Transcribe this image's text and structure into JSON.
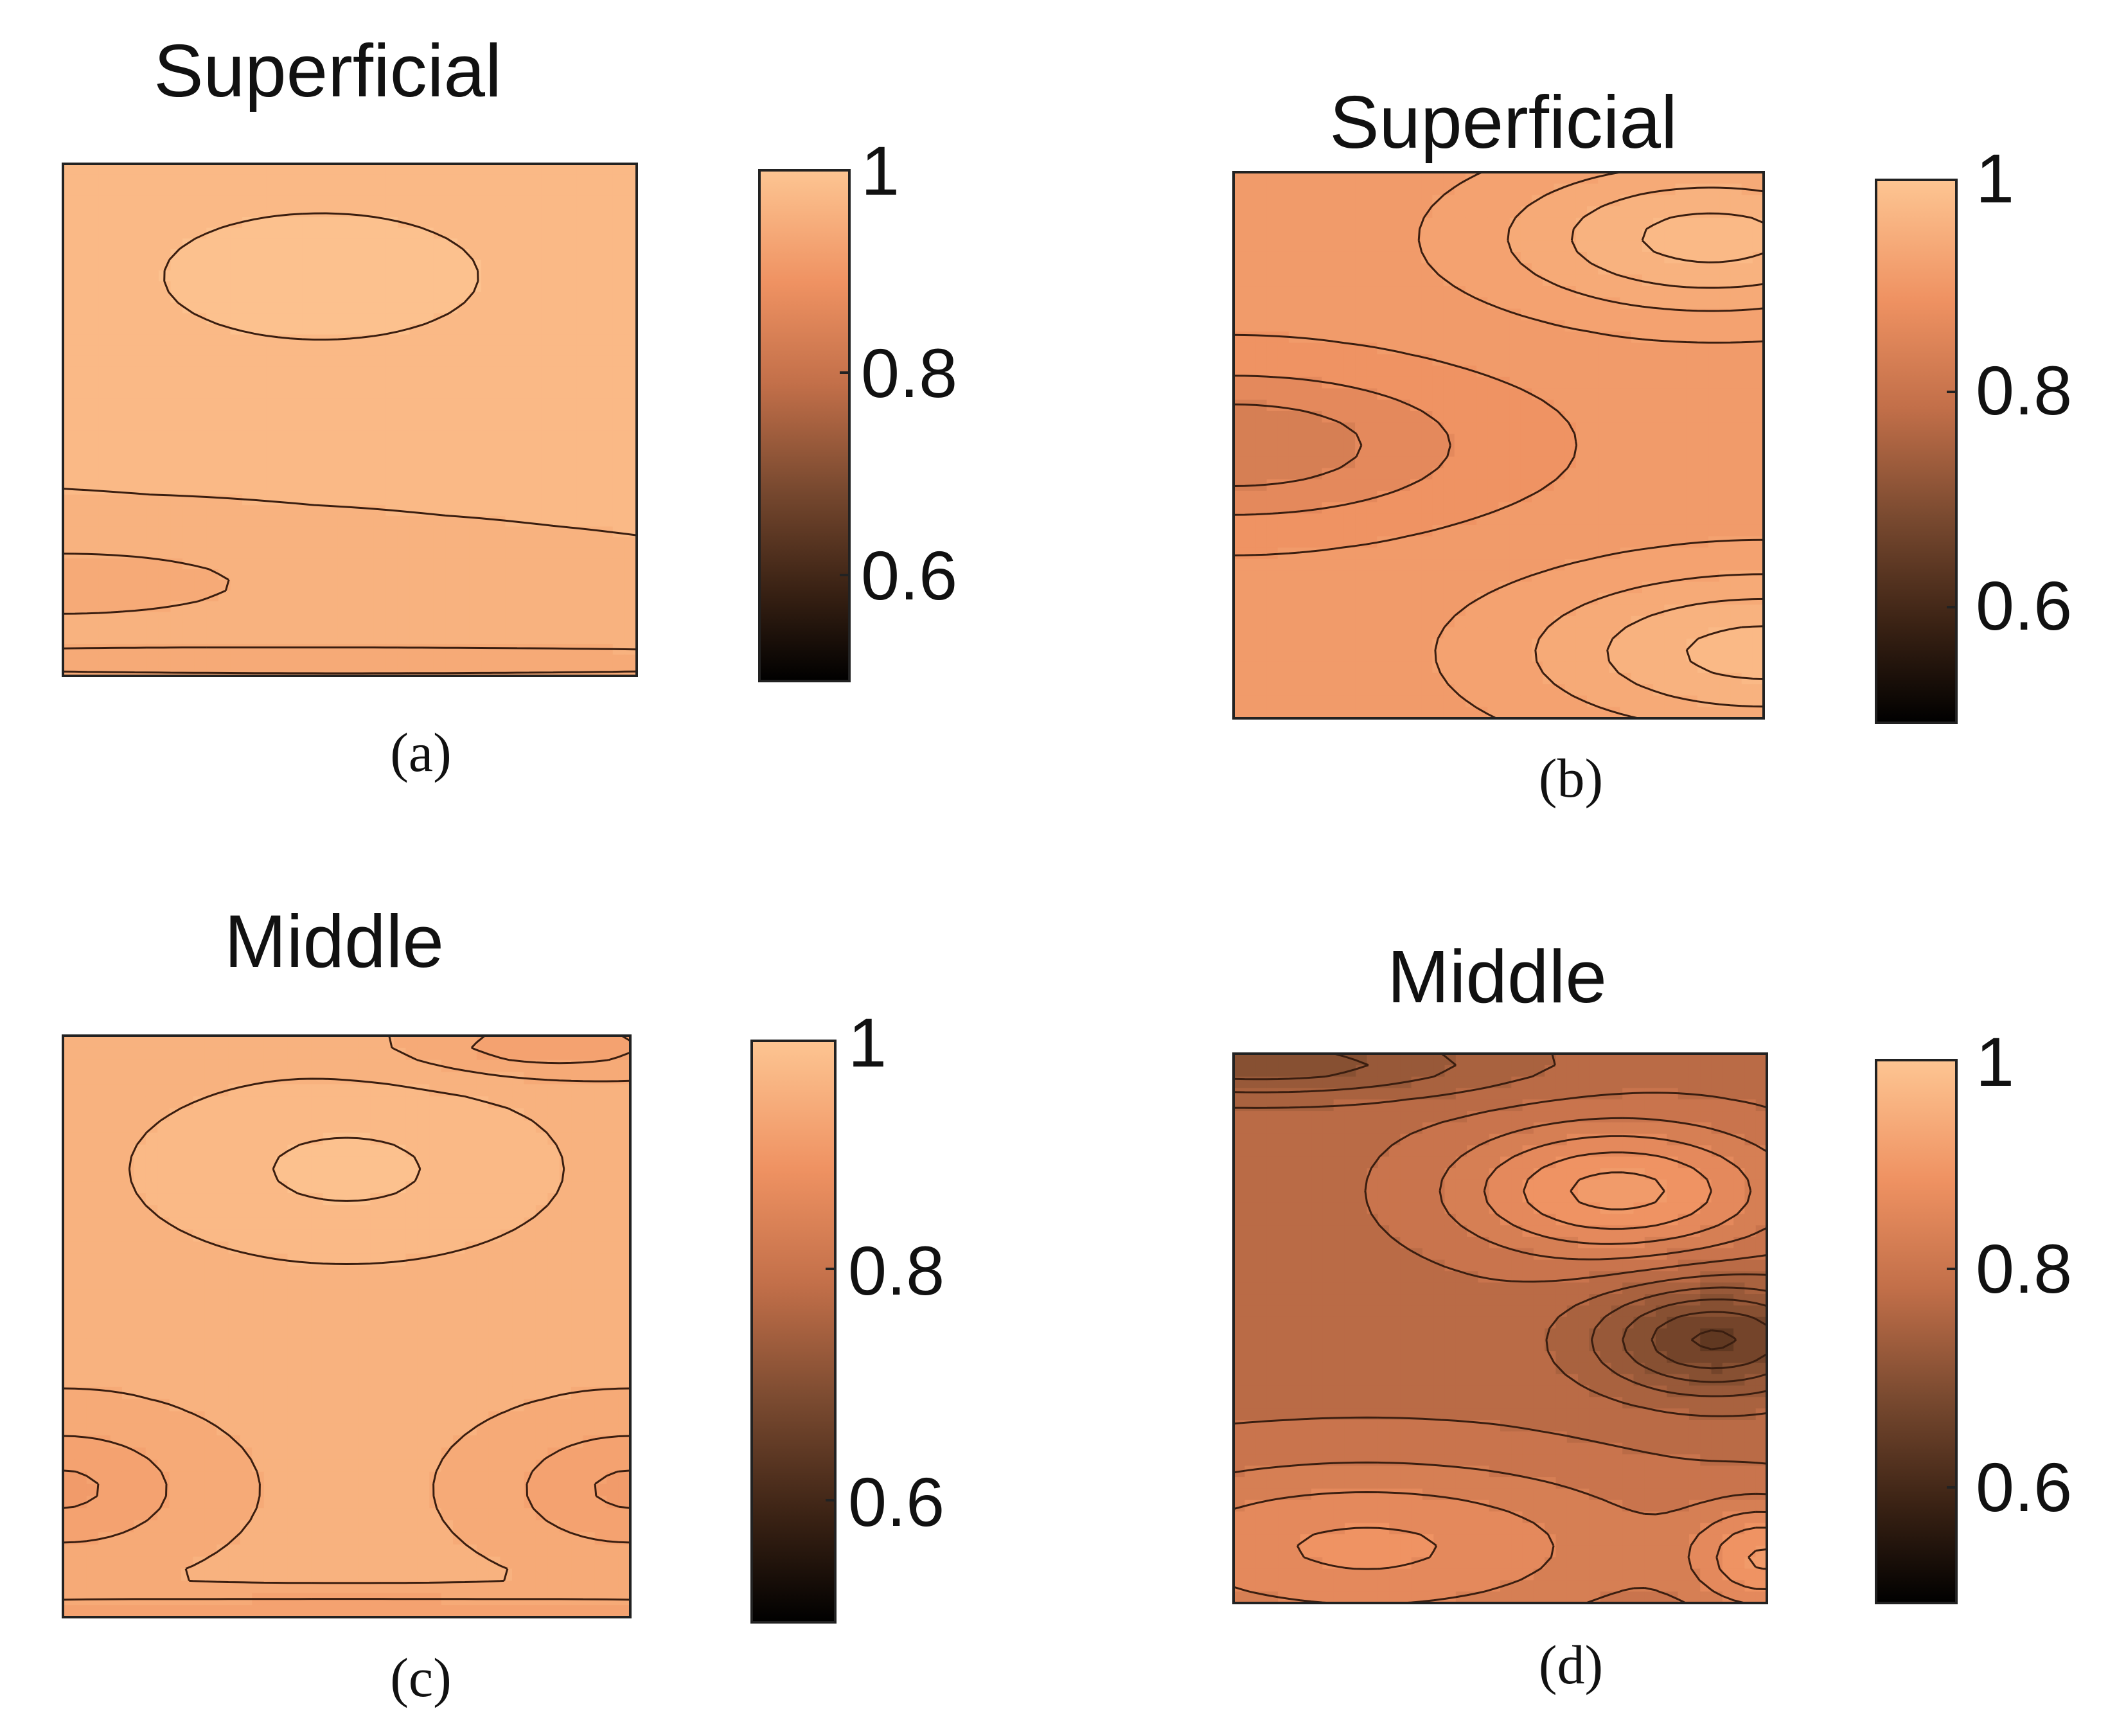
{
  "colors": {
    "colormap": [
      "#000000",
      "#4a2a18",
      "#8a5233",
      "#c26f49",
      "#ef9262",
      "#f6ab78",
      "#fdc592"
    ],
    "contour_line": "#3a1e10"
  },
  "chart_data": [
    {
      "type": "heatmap",
      "panel": "(a)",
      "title": "Superficial",
      "colorbar": {
        "ticks": [
          "1",
          "0.8",
          "0.6"
        ],
        "range": [
          0.5,
          1.0
        ]
      },
      "base_value": 0.95,
      "peaks": [
        {
          "cx": 0.45,
          "cy": 0.22,
          "sx": 0.4,
          "sy": 0.18,
          "value": 0.04
        },
        {
          "cx": 0.0,
          "cy": 0.82,
          "sx": 0.35,
          "sy": 0.07,
          "value": -0.05
        },
        {
          "cx": 0.5,
          "cy": 0.97,
          "sx": 1.2,
          "sy": 0.03,
          "value": -0.05
        }
      ]
    },
    {
      "type": "heatmap",
      "panel": "(b)",
      "title": "Superficial",
      "colorbar": {
        "ticks": [
          "1",
          "0.8",
          "0.6"
        ],
        "range": [
          0.5,
          1.0
        ]
      },
      "base_value": 0.86,
      "peaks": [
        {
          "cx": 0.0,
          "cy": 0.5,
          "sx": 0.45,
          "sy": 0.14,
          "value": -0.08
        },
        {
          "cx": 0.9,
          "cy": 0.12,
          "sx": 0.4,
          "sy": 0.14,
          "value": 0.1
        },
        {
          "cx": 1.0,
          "cy": 0.88,
          "sx": 0.45,
          "sy": 0.15,
          "value": 0.1
        }
      ]
    },
    {
      "type": "heatmap",
      "panel": "(c)",
      "title": "Middle",
      "colorbar": {
        "ticks": [
          "1",
          "0.8",
          "0.6"
        ],
        "range": [
          0.5,
          1.0
        ]
      },
      "base_value": 0.93,
      "peaks": [
        {
          "cx": 0.5,
          "cy": 0.23,
          "sx": 0.4,
          "sy": 0.17,
          "value": 0.05
        },
        {
          "cx": 0.0,
          "cy": 0.78,
          "sx": 0.22,
          "sy": 0.11,
          "value": -0.06
        },
        {
          "cx": 1.0,
          "cy": 0.78,
          "sx": 0.22,
          "sy": 0.11,
          "value": -0.06
        },
        {
          "cx": 0.85,
          "cy": 0.02,
          "sx": 0.25,
          "sy": 0.05,
          "value": -0.05
        },
        {
          "cx": 0.5,
          "cy": 0.99,
          "sx": 1.2,
          "sy": 0.03,
          "value": -0.05
        }
      ]
    },
    {
      "type": "heatmap",
      "panel": "(d)",
      "title": "Middle",
      "colorbar": {
        "ticks": [
          "1",
          "0.8",
          "0.6"
        ],
        "range": [
          0.5,
          1.0
        ]
      },
      "base_value": 0.74,
      "peaks": [
        {
          "cx": 0.9,
          "cy": 0.52,
          "sx": 0.22,
          "sy": 0.1,
          "value": -0.12
        },
        {
          "cx": 0.72,
          "cy": 0.25,
          "sx": 0.3,
          "sy": 0.12,
          "value": 0.12
        },
        {
          "cx": 0.25,
          "cy": 0.9,
          "sx": 0.55,
          "sy": 0.16,
          "value": 0.09
        },
        {
          "cx": 1.0,
          "cy": 0.92,
          "sx": 0.14,
          "sy": 0.1,
          "value": 0.1
        },
        {
          "cx": 0.05,
          "cy": 0.02,
          "sx": 0.45,
          "sy": 0.06,
          "value": -0.08
        }
      ]
    }
  ]
}
